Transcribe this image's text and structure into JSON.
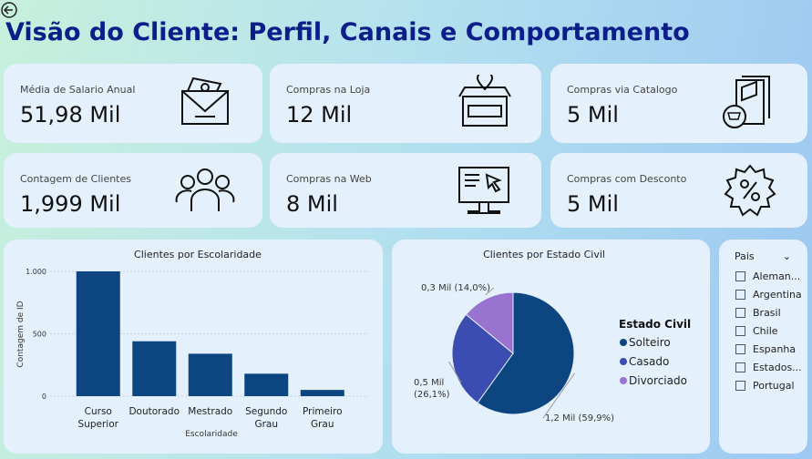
{
  "header": {
    "title": "Visão do Cliente: Perfil, Canais e Comportamento"
  },
  "kpis": [
    {
      "label": "Média de Salario Anual",
      "value": "51,98 Mil"
    },
    {
      "label": "Compras na Loja",
      "value": "12 Mil"
    },
    {
      "label": "Compras via Catalogo",
      "value": "5 Mil"
    },
    {
      "label": "Contagem de Clientes",
      "value": "1,999 Mil"
    },
    {
      "label": "Compras na Web",
      "value": "8 Mil"
    },
    {
      "label": "Compras com Desconto",
      "value": "5 Mil"
    }
  ],
  "filter": {
    "title": "Pais",
    "items": [
      "Aleman...",
      "Argentina",
      "Brasil",
      "Chile",
      "Espanha",
      "Estados...",
      "Portugal"
    ]
  },
  "chart_data": [
    {
      "type": "bar",
      "title": "Clientes por Escolaridade",
      "x_label": "Escolaridade",
      "y_label": "Contagem de ID",
      "categories": [
        "Curso Superior",
        "Doutorado",
        "Mestrado",
        "Segundo Grau",
        "Primeiro Grau"
      ],
      "values": [
        1000,
        440,
        340,
        180,
        50
      ],
      "color": "#0d4580",
      "ylim": [
        0,
        1000
      ],
      "yticks": [
        0,
        500,
        {
          "value": 1000,
          "label": "1.000"
        }
      ],
      "grid": true
    },
    {
      "type": "pie",
      "title": "Clientes por Estado Civil",
      "legend_title": "Estado Civil",
      "categories": [
        "Solteiro",
        "Casado",
        "Divorciado"
      ],
      "values": [
        59.9,
        26.1,
        14.0
      ],
      "value_labels": [
        "1,2 Mil (59,9%)",
        "0,5 Mil (26,1%)",
        "0,3 Mil (14,0%)"
      ],
      "colors": [
        "#0d4580",
        "#3b4db0",
        "#9873d0"
      ]
    }
  ]
}
